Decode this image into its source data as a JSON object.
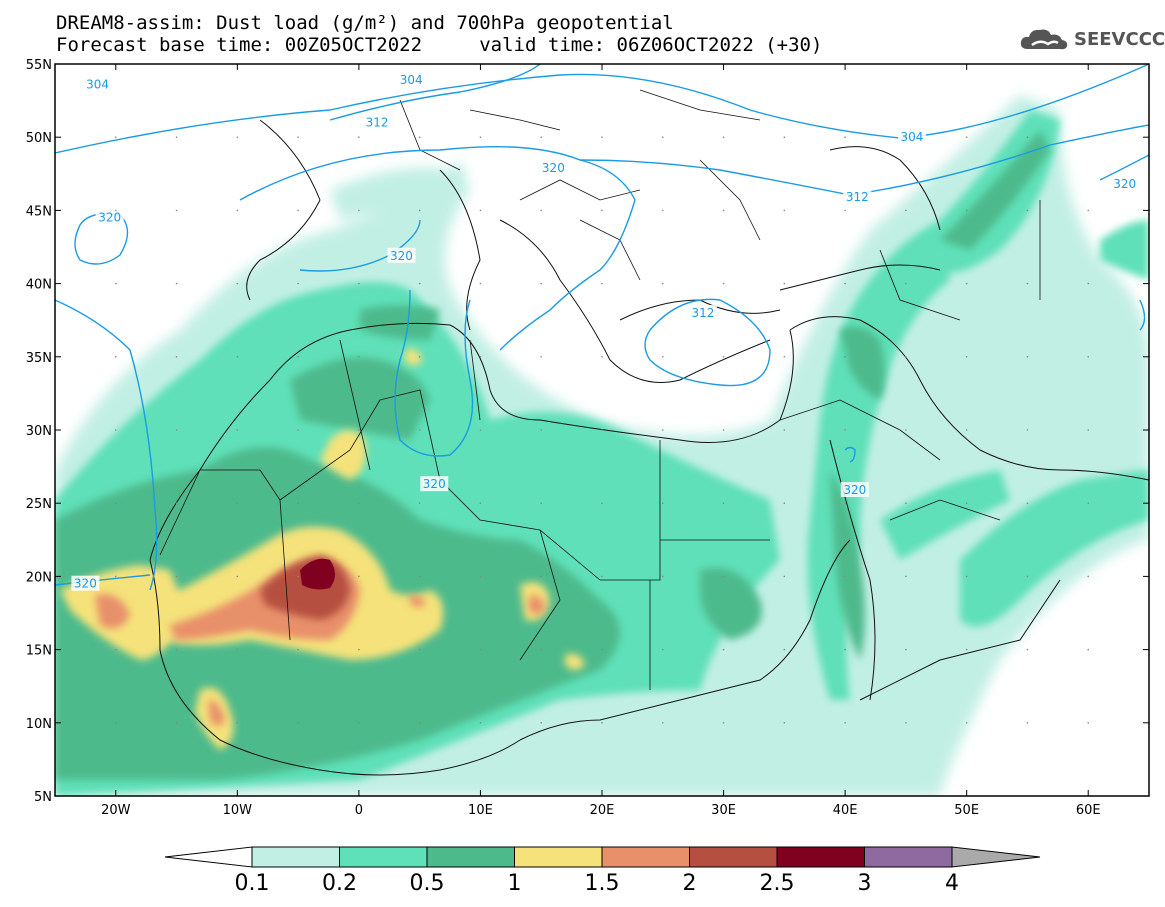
{
  "title": {
    "line1": "DREAM8-assim: Dust load (g/m²) and 700hPa geopotential",
    "line2": "Forecast base time: 00Z05OCT2022     valid time: 06Z06OCT2022 (+30)"
  },
  "logo": {
    "text": "SEEVCCC",
    "icon": "cloud-icon"
  },
  "map": {
    "lat_ticks": [
      "55N",
      "50N",
      "45N",
      "40N",
      "35N",
      "30N",
      "25N",
      "20N",
      "15N",
      "10N",
      "5N"
    ],
    "lon_ticks": [
      "20W",
      "10W",
      "0",
      "10E",
      "20E",
      "30E",
      "40E",
      "50E",
      "60E"
    ],
    "extent": {
      "lon": [
        -25,
        65
      ],
      "lat": [
        5,
        55
      ]
    }
  },
  "contours": {
    "color": "#1a9be6",
    "labels": [
      {
        "text": "304",
        "lon": -21.5,
        "lat": 53.6
      },
      {
        "text": "304",
        "lon": 4.3,
        "lat": 53.9
      },
      {
        "text": "312",
        "lon": 1.5,
        "lat": 51.0
      },
      {
        "text": "304",
        "lon": 45.5,
        "lat": 50.0
      },
      {
        "text": "320",
        "lon": 16.0,
        "lat": 47.9
      },
      {
        "text": "312",
        "lon": 41.0,
        "lat": 45.9
      },
      {
        "text": "320",
        "lon": 63.0,
        "lat": 46.8
      },
      {
        "text": "320",
        "lon": -20.5,
        "lat": 44.5
      },
      {
        "text": "320",
        "lon": 3.5,
        "lat": 41.9
      },
      {
        "text": "312",
        "lon": 28.3,
        "lat": 38.0
      },
      {
        "text": "320",
        "lon": 6.2,
        "lat": 26.3
      },
      {
        "text": "320",
        "lon": 40.8,
        "lat": 25.9
      },
      {
        "text": "320",
        "lon": -22.5,
        "lat": 19.5
      }
    ]
  },
  "colorbar": {
    "labels": [
      "0.1",
      "0.2",
      "0.5",
      "1",
      "1.5",
      "2",
      "2.5",
      "3",
      "4"
    ],
    "colors": [
      "#c2efe4",
      "#5ee0b8",
      "#4dba8c",
      "#f5e27a",
      "#e8906a",
      "#b55040",
      "#800020",
      "#8e6aa0"
    ],
    "under_color": "#ffffff",
    "over_color": "#aaaaaa"
  }
}
